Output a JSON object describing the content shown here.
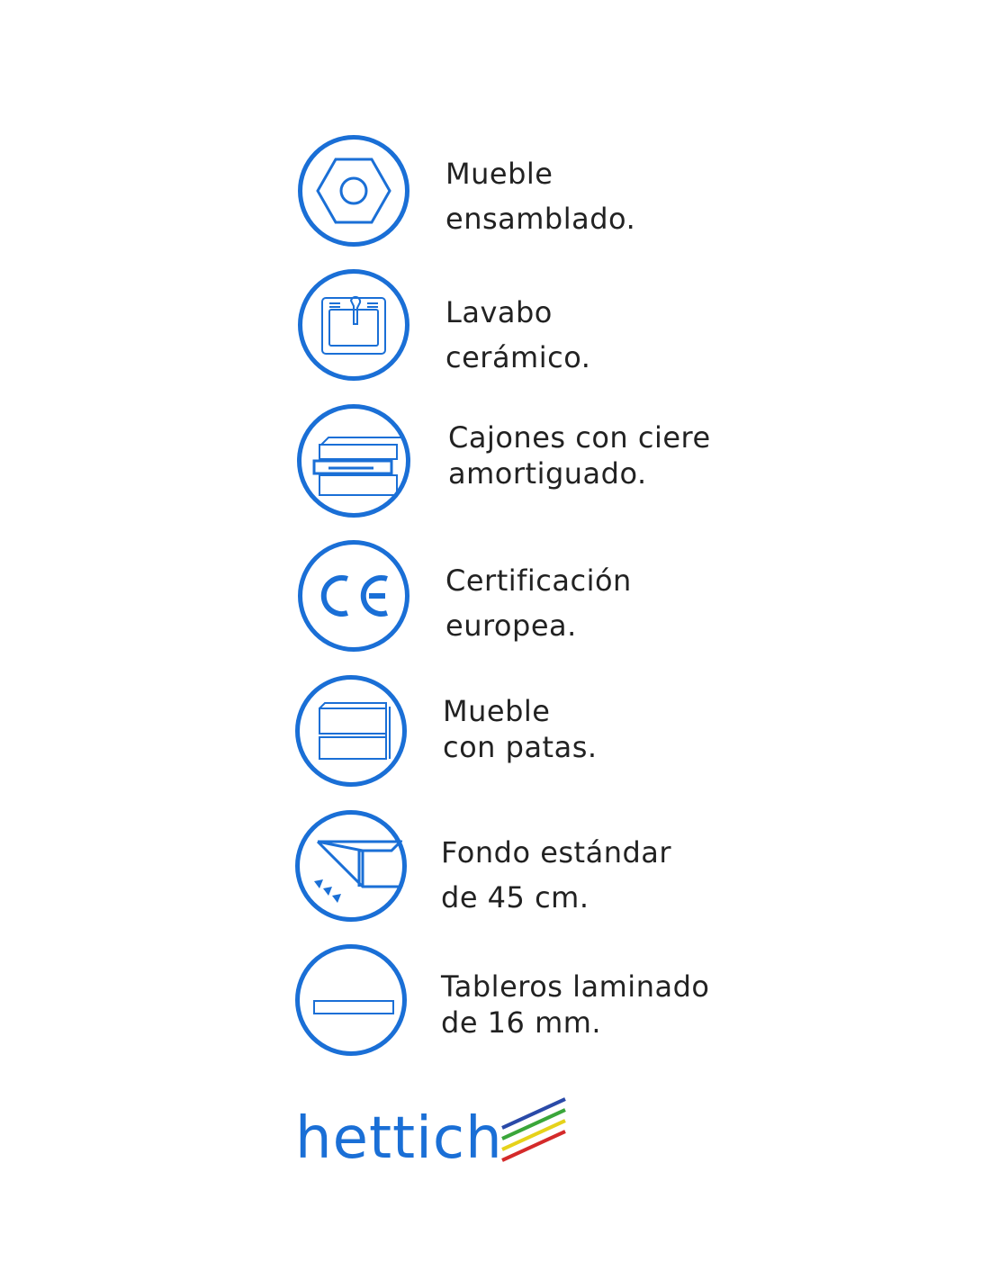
{
  "features": [
    {
      "icon": "hex-nut-icon",
      "lines": [
        "Mueble",
        "ensamblado."
      ]
    },
    {
      "icon": "sink-icon",
      "lines": [
        "Lavabo",
        "cerámico."
      ]
    },
    {
      "icon": "drawers-icon",
      "lines": [
        "Cajones con ciere",
        "amortiguado."
      ]
    },
    {
      "icon": "ce-mark-icon",
      "lines": [
        "Certificación",
        "europea."
      ]
    },
    {
      "icon": "cabinet-legs-icon",
      "lines": [
        "Mueble",
        "con patas."
      ]
    },
    {
      "icon": "depth-icon",
      "lines": [
        "Fondo estándar",
        "de 45 cm."
      ]
    },
    {
      "icon": "board-icon",
      "lines": [
        "Tableros laminado",
        "de 16 mm."
      ]
    }
  ],
  "brand": {
    "name": "hettich",
    "stripe_colors": [
      "#2a4aa8",
      "#3aa63a",
      "#e6d21a",
      "#d42a2a"
    ]
  },
  "colors": {
    "accent": "#1a6fd6",
    "text": "#222222"
  }
}
